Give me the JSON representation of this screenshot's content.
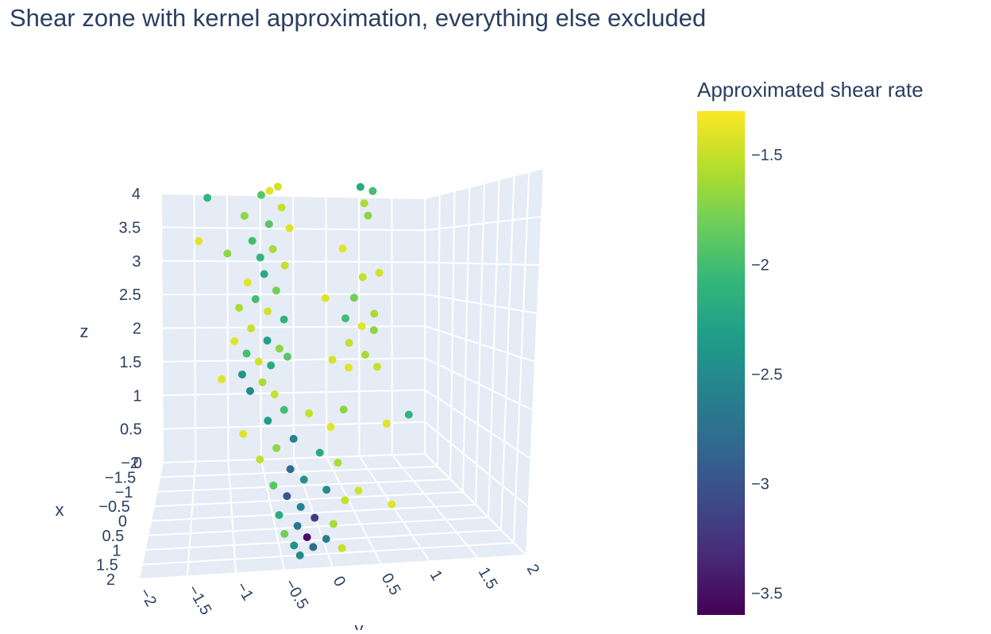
{
  "chart_data": {
    "type": "scatter3d",
    "title": "Shear zone with kernel approximation, everything else excluded",
    "xaxis_title": "x",
    "yaxis_title": "y",
    "zaxis_title": "z",
    "colorbar_title": "Approximated shear rate",
    "xlim": [
      -2,
      2
    ],
    "ylim": [
      -2,
      2
    ],
    "zlim": [
      0,
      4
    ],
    "xticks": [
      {
        "value": -2,
        "label": "−2"
      },
      {
        "value": -1.5,
        "label": "−1.5"
      },
      {
        "value": -1,
        "label": "−1"
      },
      {
        "value": -0.5,
        "label": "−0.5"
      },
      0,
      0.5,
      1,
      1.5,
      2
    ],
    "yticks": [
      {
        "value": -2,
        "label": "−2"
      },
      {
        "value": -1.5,
        "label": "−1.5"
      },
      {
        "value": -1,
        "label": "−1"
      },
      {
        "value": -0.5,
        "label": "−0.5"
      },
      0,
      0.5,
      1,
      1.5,
      2
    ],
    "zticks": [
      0,
      0.5,
      1,
      1.5,
      2,
      2.5,
      3,
      3.5,
      4
    ],
    "clim": [
      -3.6,
      -1.3
    ],
    "cticks": [
      {
        "value": -1.5,
        "label": "−1.5"
      },
      {
        "value": -2,
        "label": "−2"
      },
      {
        "value": -2.5,
        "label": "−2.5"
      },
      {
        "value": -3,
        "label": "−3"
      },
      {
        "value": -3.5,
        "label": "−3.5"
      }
    ],
    "colorscale": [
      "#440154",
      "#482878",
      "#3e4989",
      "#31688e",
      "#26828e",
      "#1f9e89",
      "#35b779",
      "#6ece58",
      "#b5de2b",
      "#fde725"
    ],
    "grid": true,
    "series": [
      {
        "x": [
          0,
          0,
          0,
          0,
          0,
          0,
          0,
          0,
          0,
          0,
          0,
          0,
          0,
          0,
          0,
          0,
          0,
          0,
          0,
          0,
          0,
          0,
          0,
          0,
          0,
          0,
          0,
          0,
          0,
          0,
          0,
          0,
          0,
          0,
          0,
          0,
          0,
          0,
          0,
          0,
          0,
          0,
          0,
          0,
          0,
          0,
          0,
          0,
          0,
          0,
          -2,
          0,
          0,
          0,
          0.8,
          0.2,
          0.2,
          0.3,
          0.3,
          0.4,
          0.4,
          0.5,
          0.5,
          0.6,
          0.6,
          0.7,
          0.7,
          0.8,
          0.8,
          0.9,
          0.9,
          1.0,
          1.0,
          1.1,
          1.1,
          1.2,
          1.2,
          1.3,
          1.3,
          1.4,
          1.5,
          1.5,
          0.9,
          0.5,
          0.3
        ],
        "y": [
          -0.6,
          -0.5,
          -0.7,
          -0.45,
          -0.9,
          -0.6,
          -0.35,
          -0.8,
          -0.55,
          -0.7,
          -1.1,
          -0.4,
          -0.65,
          -0.85,
          -0.5,
          -0.75,
          -0.95,
          -0.6,
          -0.4,
          -0.8,
          -1.0,
          -0.6,
          -0.45,
          -0.85,
          -0.7,
          -0.55,
          -0.9,
          -0.65,
          -0.8,
          -0.5,
          -1.15,
          -0.35,
          0.5,
          0.65,
          0.55,
          0.6,
          0.3,
          0.55,
          0.75,
          0.45,
          0.1,
          0.7,
          0.35,
          0.55,
          0.7,
          0.4,
          0.6,
          0.2,
          0.75,
          0.4,
          -1.3,
          -1.45,
          1.15,
          0.88,
          0.8,
          -0.4,
          -0.1,
          -0.6,
          0.15,
          -0.3,
          -0.5,
          0.0,
          -0.7,
          -0.35,
          0.2,
          -0.2,
          -0.55,
          0.05,
          -0.4,
          -0.25,
          0.25,
          -0.5,
          -0.1,
          -0.3,
          0.1,
          -0.45,
          -0.2,
          0.0,
          -0.35,
          -0.15,
          -0.3,
          0.15,
          0.4,
          -0.9,
          0.3
        ],
        "z": [
          3.9,
          3.95,
          3.85,
          3.7,
          3.6,
          3.5,
          3.45,
          3.3,
          3.2,
          3.1,
          3.15,
          3.0,
          2.9,
          2.8,
          2.7,
          2.6,
          2.5,
          2.45,
          2.35,
          2.25,
          2.1,
          2.1,
          2.0,
          1.95,
          1.85,
          1.8,
          1.7,
          1.6,
          1.5,
          1.45,
          1.65,
          1.9,
          3.95,
          3.9,
          3.75,
          3.6,
          3.2,
          2.85,
          2.9,
          2.6,
          2.6,
          2.4,
          2.35,
          2.25,
          2.2,
          2.05,
          1.9,
          1.85,
          1.75,
          1.75,
          3.95,
          3.3,
          1.15,
          1.05,
          0.3,
          1.3,
          1.25,
          1.2,
          1.1,
          1.0,
          0.9,
          0.85,
          0.8,
          0.7,
          0.75,
          0.6,
          0.55,
          0.5,
          0.45,
          0.35,
          0.4,
          0.3,
          0.25,
          0.2,
          0.2,
          0.15,
          0.1,
          0.1,
          0.05,
          0.05,
          0.0,
          0.05,
          0.5,
          1.1,
          1.3
        ],
        "color_values": [
          -1.4,
          -1.45,
          -1.9,
          -1.5,
          -1.7,
          -1.9,
          -1.4,
          -2.0,
          -1.6,
          -2.1,
          -1.7,
          -1.5,
          -2.2,
          -1.4,
          -1.8,
          -2.0,
          -1.6,
          -1.45,
          -2.1,
          -1.5,
          -1.4,
          -2.3,
          -1.7,
          -2.0,
          -1.45,
          -2.2,
          -2.4,
          -1.6,
          -2.5,
          -1.5,
          -1.4,
          -1.9,
          -2.2,
          -2.0,
          -1.6,
          -1.7,
          -1.4,
          -1.5,
          -1.45,
          -1.8,
          -1.4,
          -1.6,
          -2.0,
          -1.4,
          -1.7,
          -1.5,
          -1.6,
          -1.45,
          -1.5,
          -1.4,
          -2.1,
          -1.4,
          -2.1,
          -1.4,
          -1.4,
          -2.0,
          -1.5,
          -2.3,
          -1.4,
          -2.6,
          -1.7,
          -2.2,
          -1.5,
          -2.8,
          -1.6,
          -2.4,
          -1.9,
          -2.5,
          -3.0,
          -2.6,
          -1.5,
          -2.2,
          -3.2,
          -2.7,
          -1.6,
          -1.8,
          -3.5,
          -2.6,
          -2.4,
          -2.8,
          -2.5,
          -1.5,
          -1.45,
          -1.4,
          -1.7
        ]
      }
    ]
  }
}
